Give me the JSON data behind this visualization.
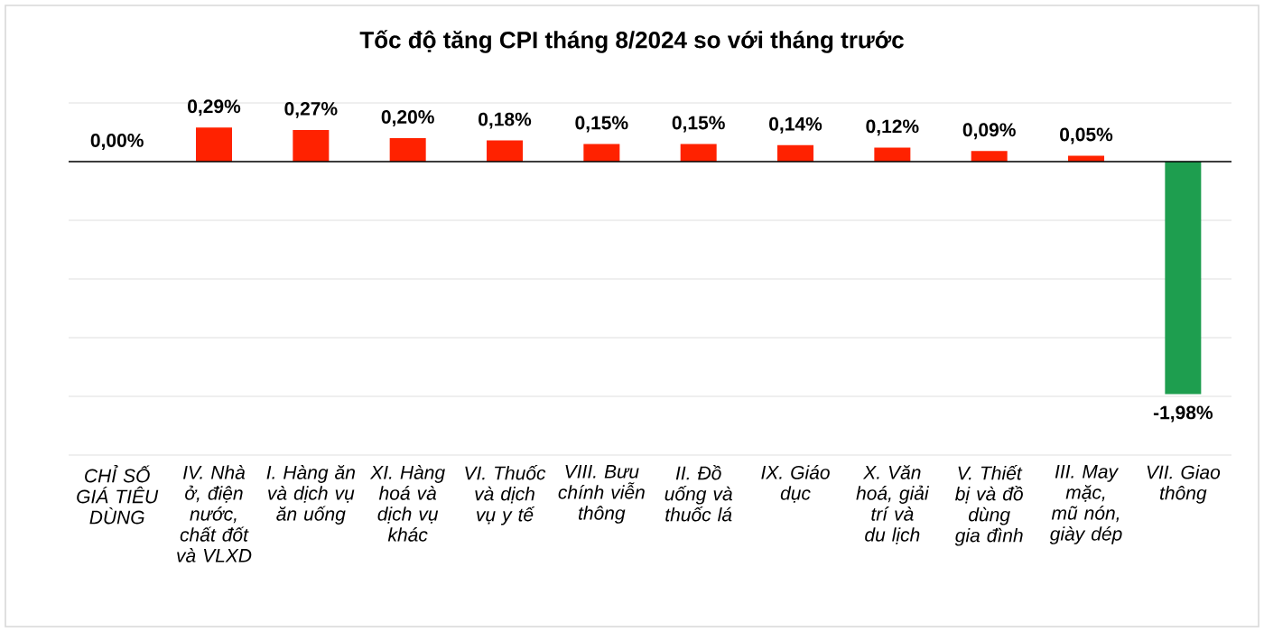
{
  "chart_data": {
    "type": "bar",
    "title": "Tốc độ tăng CPI tháng 8/2024 so với tháng trước",
    "categories": [
      "CHỈ SỐ GIÁ TIÊU DÙNG",
      "IV. Nhà ở, điện nước, chất đốt và VLXD",
      "I. Hàng ăn và dịch vụ ăn uống",
      "XI. Hàng hoá và dịch vụ khác",
      "VI. Thuốc và dịch vụ y tế",
      "VIII. Bưu chính viễn thông",
      "II. Đồ uống và thuốc lá",
      "IX. Giáo dục",
      "X. Văn hoá, giải trí và du lịch",
      "V. Thiết bị và đồ dùng gia đình",
      "III. May mặc, mũ nón, giày dép",
      "VII. Giao thông"
    ],
    "values": [
      0.0,
      0.29,
      0.27,
      0.2,
      0.18,
      0.15,
      0.15,
      0.14,
      0.12,
      0.09,
      0.05,
      -1.98
    ],
    "value_labels": [
      "0,00%",
      "0,29%",
      "0,27%",
      "0,20%",
      "0,18%",
      "0,15%",
      "0,15%",
      "0,14%",
      "0,12%",
      "0,09%",
      "0,05%",
      "-1,98%"
    ],
    "colors": [
      "#ff2200",
      "#ff2200",
      "#ff2200",
      "#ff2200",
      "#ff2200",
      "#ff2200",
      "#ff2200",
      "#ff2200",
      "#ff2200",
      "#ff2200",
      "#ff2200",
      "#1e9e4f"
    ],
    "ylim": [
      -2.5,
      0.5
    ],
    "yticks": [
      {
        "value": -2.5,
        "label": null
      },
      {
        "value": -2.0,
        "label": null
      },
      {
        "value": -1.5,
        "label": null
      },
      {
        "value": -1.0,
        "label": null
      },
      {
        "value": -0.5,
        "label": null
      },
      {
        "value": 0,
        "label": null
      },
      {
        "value": 0.5,
        "label": null
      }
    ],
    "grid": "y",
    "tick_labels": "x"
  }
}
